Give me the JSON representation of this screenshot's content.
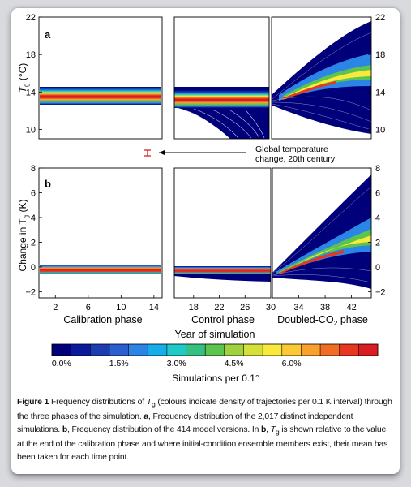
{
  "chart_data": [
    {
      "panel": "a",
      "type": "heatmap",
      "ylabel": "T_g (°C)",
      "ylim": [
        9,
        22
      ],
      "yticks": [
        10,
        14,
        18,
        22
      ],
      "phases": [
        {
          "name": "Calibration phase",
          "x_range": [
            0,
            15
          ],
          "band_center": 13.8,
          "band_width": 1.4
        },
        {
          "name": "Control phase",
          "x_range": [
            15,
            30
          ],
          "band_center": 13.6,
          "band_width": 1.2,
          "spread_low": 9.8
        },
        {
          "name": "Doubled-CO2 phase",
          "x_range": [
            30,
            45
          ],
          "start": 13.5,
          "end_center": 18.0,
          "end_low": 10.4,
          "end_high": 22
        }
      ],
      "annotation": "Global temperature change, 20th century"
    },
    {
      "panel": "b",
      "type": "heatmap",
      "xlabel": "Year of simulation",
      "ylabel": "Change in T_g (K)",
      "xlim": [
        0,
        45
      ],
      "ylim": [
        -2.5,
        8
      ],
      "yticks": [
        -2,
        0,
        2,
        4,
        6,
        8
      ],
      "xticks": [
        2,
        6,
        10,
        14,
        18,
        22,
        26,
        30,
        34,
        38,
        42
      ],
      "phases": [
        {
          "name": "Calibration phase",
          "x_range": [
            0,
            15
          ],
          "band_center": 0
        },
        {
          "name": "Control phase",
          "x_range": [
            15,
            30
          ],
          "band_center": -0.1
        },
        {
          "name": "Doubled-CO2 phase",
          "x_range": [
            30,
            45
          ],
          "start": 0,
          "end_center": 4.0,
          "end_low": -0.3,
          "end_high": 7.5
        }
      ]
    }
  ],
  "panel_a": {
    "label": "a",
    "ylabel_base": "T",
    "ylabel_sub": "g",
    "ylabel_rest": " (°C)",
    "ticks": [
      "10",
      "14",
      "18",
      "22"
    ]
  },
  "annotation": {
    "line1": "Global temperature",
    "line2": "change, 20th century"
  },
  "panel_b": {
    "label": "b",
    "ylabel_base": "Change in T",
    "ylabel_sub": "g",
    "ylabel_rest": " (K)",
    "ticks": [
      "−2",
      "0",
      "2",
      "4",
      "6",
      "8"
    ],
    "xticks": [
      "2",
      "6",
      "10",
      "14",
      "18",
      "22",
      "26",
      "30",
      "34",
      "38",
      "42"
    ]
  },
  "phase_labels": [
    "Calibration phase",
    "Control phase"
  ],
  "phase_label_doubled_base": "Doubled-CO",
  "phase_label_doubled_sub": "2",
  "phase_label_doubled_rest": " phase",
  "xlabel": "Year of simulation",
  "colorbar": {
    "colors": [
      "#00007a",
      "#0a1a9a",
      "#1c3cb4",
      "#2a5fd0",
      "#2b85e6",
      "#16aee8",
      "#1ec9c8",
      "#35c083",
      "#5bc44e",
      "#9fd23c",
      "#d6e03a",
      "#f8e93c",
      "#fbc934",
      "#f9a12c",
      "#f26d24",
      "#e8361f",
      "#da1d22"
    ],
    "ticks": [
      "0.0%",
      "1.5%",
      "3.0%",
      "4.5%",
      "6.0%"
    ],
    "label": "Simulations per 0.1°"
  },
  "caption": {
    "fig": "Figure 1",
    "t1": " Frequency distributions of ",
    "T": "T",
    "g": "g",
    "t2": " (colours indicate density of trajectories per 0.1 K interval) through the three phases of the simulation. ",
    "a": "a",
    "t3": ", Frequency distribution of the 2,017 distinct independent simulations. ",
    "b": "b",
    "t4": ", Frequency distribution of the 414 model versions. In ",
    "b2": "b",
    "t5": ", ",
    "T2": "T",
    "g2": "g",
    "t6": " is shown relative to the value at the end of the calibration phase and where initial-condition ensemble members exist, their mean has been taken for each time point."
  }
}
